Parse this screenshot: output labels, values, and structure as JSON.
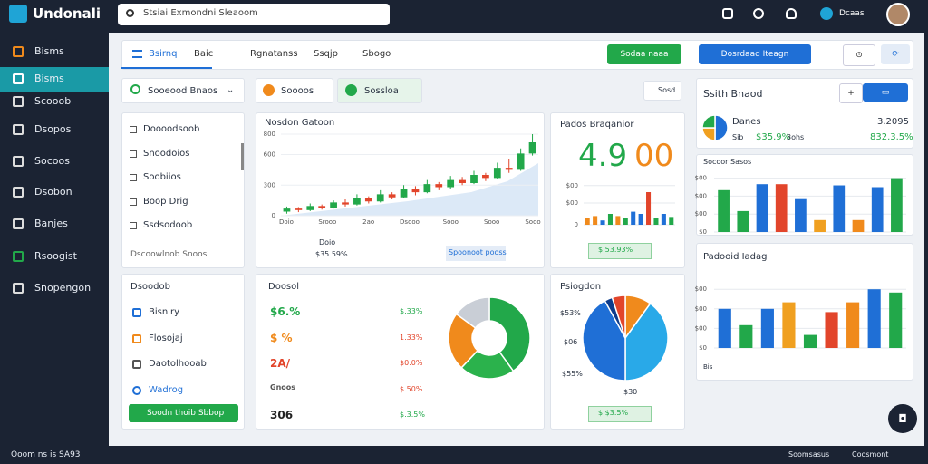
{
  "app": {
    "logo": "Undonali",
    "search": "Stsiai Exmondni Sleaoom",
    "user": "Dcaas"
  },
  "sidebar": {
    "items": [
      "Bisms",
      "Bisms",
      "Scooob",
      "Dsopos",
      "Socoos",
      "Dsobon",
      "Banjes",
      "Rsoogist",
      "Snopengon"
    ],
    "footer": "Ooom ns is SA93"
  },
  "tabs": [
    "Bsirnq",
    "Baic",
    "Rgnatanss",
    "Ssqjp",
    "Sbogo"
  ],
  "buttons": {
    "green": "Sodaa naaa",
    "blue": "Dosrdaad Iteagn"
  },
  "filters": [
    "Sooeood Bnaos",
    "Soooos",
    "Sossloa"
  ],
  "filter_right": "Sosd",
  "list_panel": {
    "items": [
      "Doooodsoob",
      "Snoodoios",
      "Soobiios",
      "Boop Drig",
      "Ssdsodoob"
    ],
    "footer": "Dscoowlnob Snoos"
  },
  "candles": {
    "title": "Nosdon Gatoon",
    "ylim": [
      0,
      800
    ],
    "yticks": [
      0,
      300,
      600,
      800
    ],
    "xlabels": [
      "Doio",
      "Srooo",
      "2ao",
      "Dsooo",
      "Sooo",
      "Sooo",
      "Sooo"
    ],
    "caption": "Doio",
    "value": "$35.59%",
    "badge": "Spoonoot pooss",
    "ohlc": [
      [
        40,
        70,
        90,
        20
      ],
      [
        70,
        55,
        85,
        35
      ],
      [
        55,
        95,
        120,
        45
      ],
      [
        95,
        80,
        110,
        60
      ],
      [
        80,
        130,
        150,
        70
      ],
      [
        130,
        110,
        160,
        90
      ],
      [
        110,
        170,
        210,
        100
      ],
      [
        170,
        140,
        190,
        120
      ],
      [
        140,
        210,
        250,
        130
      ],
      [
        210,
        180,
        230,
        160
      ],
      [
        180,
        260,
        300,
        170
      ],
      [
        260,
        230,
        290,
        200
      ],
      [
        230,
        310,
        350,
        220
      ],
      [
        310,
        280,
        330,
        250
      ],
      [
        280,
        350,
        390,
        260
      ],
      [
        350,
        320,
        380,
        300
      ],
      [
        320,
        400,
        440,
        310
      ],
      [
        400,
        370,
        420,
        340
      ],
      [
        370,
        470,
        520,
        360
      ],
      [
        470,
        450,
        560,
        420
      ],
      [
        450,
        610,
        660,
        440
      ],
      [
        610,
        720,
        800,
        590
      ]
    ]
  },
  "kpi": {
    "title": "Pados Braqanior",
    "big_left": "4.9",
    "big_right": "00",
    "badge": "$ 53.93%",
    "ylim": [
      0,
      100
    ],
    "yticks": [
      {
        "value": 0,
        "label": "0"
      },
      {
        "value": 50,
        "label": "$00"
      },
      {
        "value": 90,
        "label": "$00"
      }
    ],
    "values": [
      15,
      20,
      10,
      25,
      20,
      15,
      30,
      25,
      75,
      15,
      25,
      18
    ],
    "colors": [
      "#f08a1c",
      "#f08a1c",
      "#1f6fd6",
      "#22a84a",
      "#f08a1c",
      "#22a84a",
      "#1f6fd6",
      "#1f6fd6",
      "#e2452b",
      "#22a84a",
      "#1f6fd6",
      "#22a84a"
    ]
  },
  "brand": {
    "title": "Ssith Bnaod",
    "name": "Danes",
    "value": "3.2095",
    "left": "Sib",
    "left_value": "$35.9%",
    "right": "3ohs",
    "right_value": "832.3.5%",
    "pie": {
      "values": [
        50,
        25,
        25
      ],
      "colors": [
        "#1f6fd6",
        "#f0a020",
        "#22a84a"
      ]
    }
  },
  "bars1": {
    "title": "Socoor Sasos",
    "ylim": [
      0,
      100
    ],
    "yticks": [
      {
        "value": 0,
        "label": "$0"
      },
      {
        "value": 30,
        "label": "$00"
      },
      {
        "value": 60,
        "label": "$00"
      },
      {
        "value": 90,
        "label": "$00"
      }
    ],
    "values": [
      70,
      35,
      80,
      80,
      55,
      20,
      78,
      20,
      75,
      90
    ],
    "colors": [
      "#22a84a",
      "#22a84a",
      "#1f6fd6",
      "#e2452b",
      "#1f6fd6",
      "#f0a020",
      "#1f6fd6",
      "#f08a1c",
      "#1f6fd6",
      "#22a84a"
    ]
  },
  "bars2": {
    "title": "Padooid Iadag",
    "legend": "Bis",
    "ylim": [
      0,
      100
    ],
    "yticks": [
      {
        "value": 0,
        "label": "$0"
      },
      {
        "value": 30,
        "label": "$00"
      },
      {
        "value": 60,
        "label": "$00"
      },
      {
        "value": 90,
        "label": "$00"
      }
    ],
    "values": [
      60,
      35,
      60,
      70,
      20,
      55,
      70,
      90,
      85
    ],
    "colors": [
      "#1f6fd6",
      "#22a84a",
      "#1f6fd6",
      "#f0a020",
      "#22a84a",
      "#e2452b",
      "#f08a1c",
      "#1f6fd6",
      "#22a84a"
    ]
  },
  "menu_panel": {
    "title": "Dsoodob",
    "items": [
      "Bisniry",
      "Flosojaj",
      "Daotolhooab",
      "Wadrog"
    ],
    "button": "Soodn thoib Sbbop"
  },
  "stats": {
    "title": "Doosol",
    "rows": [
      [
        "$6.%",
        "$.33%"
      ],
      [
        "$ %",
        "1.33%"
      ],
      [
        "2A/",
        "$0.0%"
      ],
      [
        "Gnoos",
        "$.50%"
      ],
      [
        "306",
        "$.3.5%"
      ]
    ],
    "donut": {
      "values": [
        40,
        22,
        23,
        15
      ],
      "colors": [
        "#22a84a",
        "#2bb24c",
        "#f08a1c",
        "#c9ced6"
      ]
    }
  },
  "pie_panel": {
    "title": "Psiogdon",
    "labels": [
      "$53%",
      "$06",
      "$55%"
    ],
    "caption": "$30",
    "badge": "$ $3.5%",
    "pie": {
      "values": [
        10,
        40,
        42,
        3,
        5
      ],
      "colors": [
        "#f08a1c",
        "#29a9e8",
        "#1f6fd6",
        "#0d3c8c",
        "#e2452b"
      ]
    }
  },
  "footer": {
    "left": "Soomsasus",
    "right": "Coosmont"
  }
}
